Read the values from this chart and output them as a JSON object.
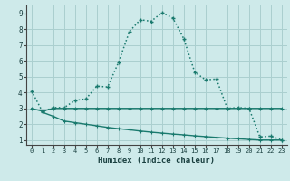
{
  "xlabel": "Humidex (Indice chaleur)",
  "bg_color": "#ceeaea",
  "grid_color": "#aacfcf",
  "line_color": "#1a7a6e",
  "line1_x": [
    0,
    1,
    2,
    3,
    4,
    5,
    6,
    7,
    8,
    9,
    10,
    11,
    12,
    13,
    14,
    15,
    16,
    17,
    18,
    19,
    20,
    21,
    22,
    23
  ],
  "line1_y": [
    4.1,
    2.8,
    3.05,
    3.05,
    3.5,
    3.6,
    4.4,
    4.35,
    5.9,
    7.85,
    8.6,
    8.5,
    9.05,
    8.7,
    7.4,
    5.3,
    4.8,
    4.85,
    3.0,
    3.05,
    3.0,
    1.2,
    1.25,
    1.0
  ],
  "line2_x": [
    0,
    1,
    2,
    3,
    4,
    5,
    6,
    7,
    8,
    9,
    10,
    11,
    12,
    13,
    14,
    15,
    16,
    17,
    18,
    19,
    20,
    21,
    22,
    23
  ],
  "line2_y": [
    3.0,
    2.82,
    3.0,
    3.0,
    3.0,
    3.0,
    3.0,
    3.0,
    3.0,
    3.0,
    3.0,
    3.0,
    3.0,
    3.0,
    3.0,
    3.0,
    3.0,
    3.0,
    3.0,
    3.0,
    3.0,
    3.0,
    3.0,
    3.0
  ],
  "line3_x": [
    1,
    2,
    3,
    4,
    5,
    6,
    7,
    8,
    9,
    10,
    11,
    12,
    13,
    14,
    15,
    16,
    17,
    18,
    19,
    20,
    21,
    22,
    23
  ],
  "line3_y": [
    2.75,
    2.5,
    2.2,
    2.1,
    2.0,
    1.9,
    1.8,
    1.72,
    1.65,
    1.57,
    1.5,
    1.44,
    1.38,
    1.33,
    1.27,
    1.22,
    1.17,
    1.12,
    1.08,
    1.04,
    1.0,
    1.0,
    1.0
  ],
  "xlim": [
    -0.5,
    23.5
  ],
  "ylim": [
    0.7,
    9.5
  ],
  "yticks": [
    1,
    2,
    3,
    4,
    5,
    6,
    7,
    8,
    9
  ],
  "xticks": [
    0,
    1,
    2,
    3,
    4,
    5,
    6,
    7,
    8,
    9,
    10,
    11,
    12,
    13,
    14,
    15,
    16,
    17,
    18,
    19,
    20,
    21,
    22,
    23
  ]
}
